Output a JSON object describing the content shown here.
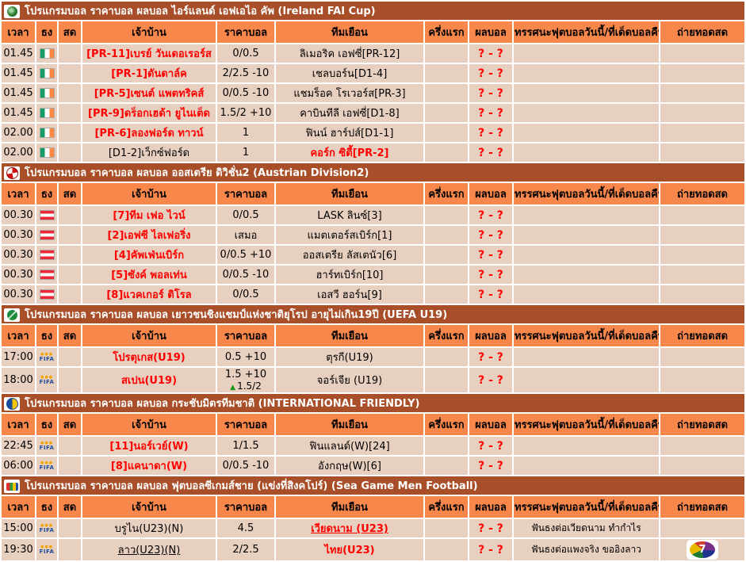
{
  "colors": {
    "title_bar": "#A84E28",
    "header_row": "#F7874A",
    "row_bg": "#E8D0C1",
    "highlight_red": "#FF0000"
  },
  "columns": [
    "เวลา",
    "ธง",
    "สด",
    "เจ้าบ้าน",
    "ราคาบอล",
    "ทีมเยือน",
    "ครึ่งแรก",
    "ผลบอล",
    "ทรรศนะฟุตบอลวันนี้/ที่เด็ดบอลคืนนี้",
    "ถ่ายทอดสด"
  ],
  "icons": {
    "fifa_label": "FIFA",
    "tv7": "7"
  },
  "sections": [
    {
      "title": "โปรแกรมบอล ราคาบอล ผลบอล ไอร์แลนด์ เอฟเอไอ คัพ (Ireland FAI Cup)",
      "icon": "fai-icon",
      "flag": "ireland-flag",
      "rows": [
        {
          "time": "01.45",
          "home": {
            "text": "[PR-11]เบรย์ วันเดอเรอร์ส",
            "fav": true,
            "link": false
          },
          "odds": {
            "main": "0/0.5",
            "extra": null,
            "arrow": false
          },
          "away": {
            "text": "ลิเมอริค เอฟซี่[PR-12]",
            "fav": false,
            "link": false
          },
          "first_half": "",
          "score": "? - ?",
          "tips": "",
          "tv": ""
        },
        {
          "time": "01.45",
          "home": {
            "text": "[PR-1]ดันดาล์ค",
            "fav": true,
            "link": false
          },
          "odds": {
            "main": "2/2.5 -10",
            "extra": null,
            "arrow": false
          },
          "away": {
            "text": "เชลบอร์น[D1-4]",
            "fav": false,
            "link": false
          },
          "first_half": "",
          "score": "? - ?",
          "tips": "",
          "tv": ""
        },
        {
          "time": "01.45",
          "home": {
            "text": "[PR-5]เซนต์ แพตทริคส์",
            "fav": true,
            "link": false
          },
          "odds": {
            "main": "0/0.5 -10",
            "extra": null,
            "arrow": false
          },
          "away": {
            "text": "แชมร็อค โรเวอร์ส[PR-3]",
            "fav": false,
            "link": false
          },
          "first_half": "",
          "score": "? - ?",
          "tips": "",
          "tv": ""
        },
        {
          "time": "01.45",
          "home": {
            "text": "[PR-9]ดร็อกเฮด้า ยูไนเต็ด",
            "fav": true,
            "link": false
          },
          "odds": {
            "main": "1.5/2 +10",
            "extra": null,
            "arrow": false
          },
          "away": {
            "text": "คาบินทีลี เอฟซี่[D1-8]",
            "fav": false,
            "link": false
          },
          "first_half": "",
          "score": "? - ?",
          "tips": "",
          "tv": ""
        },
        {
          "time": "02.00",
          "home": {
            "text": "[PR-6]ลองฟอร์ด ทาวน์",
            "fav": true,
            "link": false
          },
          "odds": {
            "main": "1",
            "extra": null,
            "arrow": false
          },
          "away": {
            "text": "ฟินน์ ฮาร์ปส์[D1-1]",
            "fav": false,
            "link": false
          },
          "first_half": "",
          "score": "? - ?",
          "tips": "",
          "tv": ""
        },
        {
          "time": "02.00",
          "home": {
            "text": "[D1-2]เว็กซ์ฟอร์ด",
            "fav": false,
            "link": false
          },
          "odds": {
            "main": "1",
            "extra": null,
            "arrow": false
          },
          "away": {
            "text": "คอร์ก ซิตี้[PR-2]",
            "fav": true,
            "link": false
          },
          "first_half": "",
          "score": "? - ?",
          "tips": "",
          "tv": ""
        }
      ]
    },
    {
      "title": "โปรแกรมบอล ราคาบอล ผลบอล ออสเตรีย ดิวิชั่น2 (Austrian Division2)",
      "icon": "ball-icon",
      "flag": "austria-flag",
      "rows": [
        {
          "time": "00.30",
          "home": {
            "text": "[7]ทีม เฟอ ไวน์",
            "fav": true,
            "link": false
          },
          "odds": {
            "main": "0/0.5",
            "extra": null,
            "arrow": false
          },
          "away": {
            "text": "LASK ลินซ์[3]",
            "fav": false,
            "link": false
          },
          "first_half": "",
          "score": "? - ?",
          "tips": "",
          "tv": ""
        },
        {
          "time": "00.30",
          "home": {
            "text": "[2]เอฟซี ไลเฟอริ่ง",
            "fav": true,
            "link": false
          },
          "odds": {
            "main": "เสมอ",
            "extra": null,
            "arrow": false
          },
          "away": {
            "text": "แมตเตอร์สเบิร์ก[1]",
            "fav": false,
            "link": false
          },
          "first_half": "",
          "score": "? - ?",
          "tips": "",
          "tv": ""
        },
        {
          "time": "00.30",
          "home": {
            "text": "[4]คัพเฟ่นเบิร์ก",
            "fav": true,
            "link": false
          },
          "odds": {
            "main": "0/0.5 +10",
            "extra": null,
            "arrow": false
          },
          "away": {
            "text": "ออสเตรีย ลัสเตนัว[6]",
            "fav": false,
            "link": false
          },
          "first_half": "",
          "score": "? - ?",
          "tips": "",
          "tv": ""
        },
        {
          "time": "00.30",
          "home": {
            "text": "[5]ซังค์ พอลเท่น",
            "fav": true,
            "link": false
          },
          "odds": {
            "main": "0/0.5 -10",
            "extra": null,
            "arrow": false
          },
          "away": {
            "text": "ฮาร์ทเบิร์ก[10]",
            "fav": false,
            "link": false
          },
          "first_half": "",
          "score": "? - ?",
          "tips": "",
          "tv": ""
        },
        {
          "time": "00.30",
          "home": {
            "text": "[8]แวคเกอร์ ติโรล",
            "fav": true,
            "link": false
          },
          "odds": {
            "main": "0/0.5",
            "extra": null,
            "arrow": false
          },
          "away": {
            "text": "เอสวี ฮอร์น[9]",
            "fav": false,
            "link": false
          },
          "first_half": "",
          "score": "? - ?",
          "tips": "",
          "tv": ""
        }
      ]
    },
    {
      "title": "โปรแกรมบอล ราคาบอล ผลบอล เยาวชนชิงแชมป์แห่งชาติยุโรป อายุไม่เกิน19ปี (UEFA U19)",
      "icon": "uefa-icon",
      "flag": "fifa-flag",
      "rows": [
        {
          "time": "17:00",
          "home": {
            "text": "โปรตุเกส(U19)",
            "fav": true,
            "link": false
          },
          "odds": {
            "main": "0.5 +10",
            "extra": null,
            "arrow": false
          },
          "away": {
            "text": "ตุรกี(U19)",
            "fav": false,
            "link": false
          },
          "first_half": "",
          "score": "? - ?",
          "tips": "",
          "tv": ""
        },
        {
          "time": "18:00",
          "home": {
            "text": "สเปน(U19)",
            "fav": true,
            "link": false
          },
          "odds": {
            "main": "1.5 +10",
            "extra": "1.5/2",
            "arrow": true
          },
          "away": {
            "text": "จอร์เจีย (U19)",
            "fav": false,
            "link": false
          },
          "first_half": "",
          "score": "? - ?",
          "tips": "",
          "tv": ""
        }
      ]
    },
    {
      "title": "โปรแกรมบอล ราคาบอล ผลบอล กระชับมิตรทีมชาติ (INTERNATIONAL FRIENDLY)",
      "icon": "friendly-icon",
      "flag": "fifa-flag",
      "rows": [
        {
          "time": "22:45",
          "home": {
            "text": "[11]นอร์เวย์(W)",
            "fav": true,
            "link": false
          },
          "odds": {
            "main": "1/1.5",
            "extra": null,
            "arrow": false
          },
          "away": {
            "text": "ฟินแลนด์(W)[24]",
            "fav": false,
            "link": false
          },
          "first_half": "",
          "score": "? - ?",
          "tips": "",
          "tv": ""
        },
        {
          "time": "06:00",
          "home": {
            "text": "[8]แคนาดา(W)",
            "fav": true,
            "link": false
          },
          "odds": {
            "main": "0/0.5 -10",
            "extra": null,
            "arrow": false
          },
          "away": {
            "text": "อังกฤษ(W)[6]",
            "fav": false,
            "link": false
          },
          "first_half": "",
          "score": "? - ?",
          "tips": "",
          "tv": ""
        }
      ]
    },
    {
      "title": "โปรแกรมบอล ราคาบอล ผลบอล ฟุตบอลซีเกมส์ชาย (แข่งที่สิงคโปร์) (Sea Game Men Football)",
      "icon": "seagames-icon",
      "flag": "fifa-flag",
      "rows": [
        {
          "time": "15:00",
          "home": {
            "text": "บรูไน(U23)(N)",
            "fav": false,
            "link": false
          },
          "odds": {
            "main": "4.5",
            "extra": null,
            "arrow": false
          },
          "away": {
            "text": "เวียดนาม (U23)",
            "fav": true,
            "link": true
          },
          "first_half": "",
          "score": "? - ?",
          "tips": "ฟันธงต่อเวียดนาม ทำกำไร",
          "tv": ""
        },
        {
          "time": "19:30",
          "home": {
            "text": "ลาว(U23)(N)",
            "fav": false,
            "link": true
          },
          "odds": {
            "main": "2/2.5",
            "extra": null,
            "arrow": false
          },
          "away": {
            "text": "ไทย(U23)",
            "fav": true,
            "link": false
          },
          "first_half": "",
          "score": "? - ?",
          "tips": "ฟันธงต่อแพงจริง ขออิงลาว",
          "tv": "channel7"
        }
      ]
    }
  ]
}
